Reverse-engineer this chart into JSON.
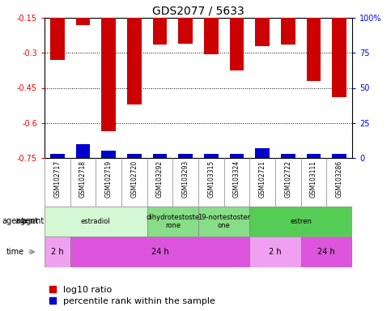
{
  "title": "GDS2077 / 5633",
  "samples": [
    "GSM102717",
    "GSM102718",
    "GSM102719",
    "GSM102720",
    "GSM103292",
    "GSM103293",
    "GSM103315",
    "GSM103324",
    "GSM102721",
    "GSM102722",
    "GSM103111",
    "GSM103286"
  ],
  "log10_ratio": [
    -0.33,
    -0.18,
    -0.635,
    -0.52,
    -0.265,
    -0.26,
    -0.305,
    -0.375,
    -0.27,
    -0.265,
    -0.42,
    -0.49
  ],
  "percentile_rank": [
    3,
    10,
    5,
    3,
    3,
    3,
    3,
    3,
    7,
    3,
    3,
    3
  ],
  "ylim_left": [
    -0.75,
    -0.15
  ],
  "ylim_right": [
    0,
    100
  ],
  "yticks_left": [
    -0.75,
    -0.6,
    -0.45,
    -0.3,
    -0.15
  ],
  "yticks_right": [
    0,
    25,
    50,
    75,
    100
  ],
  "agent_groups": [
    {
      "label": "estradiol",
      "start": 0,
      "end": 4,
      "color": "#d4f7d4"
    },
    {
      "label": "dihydrotestoste\nrone",
      "start": 4,
      "end": 6,
      "color": "#88dd88"
    },
    {
      "label": "19-nortestoster\none",
      "start": 6,
      "end": 8,
      "color": "#88dd88"
    },
    {
      "label": "estren",
      "start": 8,
      "end": 12,
      "color": "#55cc55"
    }
  ],
  "time_groups": [
    {
      "label": "2 h",
      "start": 0,
      "end": 1,
      "color": "#f0a0f0"
    },
    {
      "label": "24 h",
      "start": 1,
      "end": 8,
      "color": "#dd55dd"
    },
    {
      "label": "2 h",
      "start": 8,
      "end": 10,
      "color": "#f0a0f0"
    },
    {
      "label": "24 h",
      "start": 10,
      "end": 12,
      "color": "#dd55dd"
    }
  ],
  "bar_color_red": "#cc0000",
  "bar_color_blue": "#0000cc",
  "grid_color": "#000000",
  "bg_color": "#ffffff",
  "plot_bg": "#ffffff",
  "tick_label_fontsize": 7,
  "title_fontsize": 10,
  "legend_fontsize": 8,
  "bar_width": 0.55,
  "blue_bar_scale": 0.012
}
